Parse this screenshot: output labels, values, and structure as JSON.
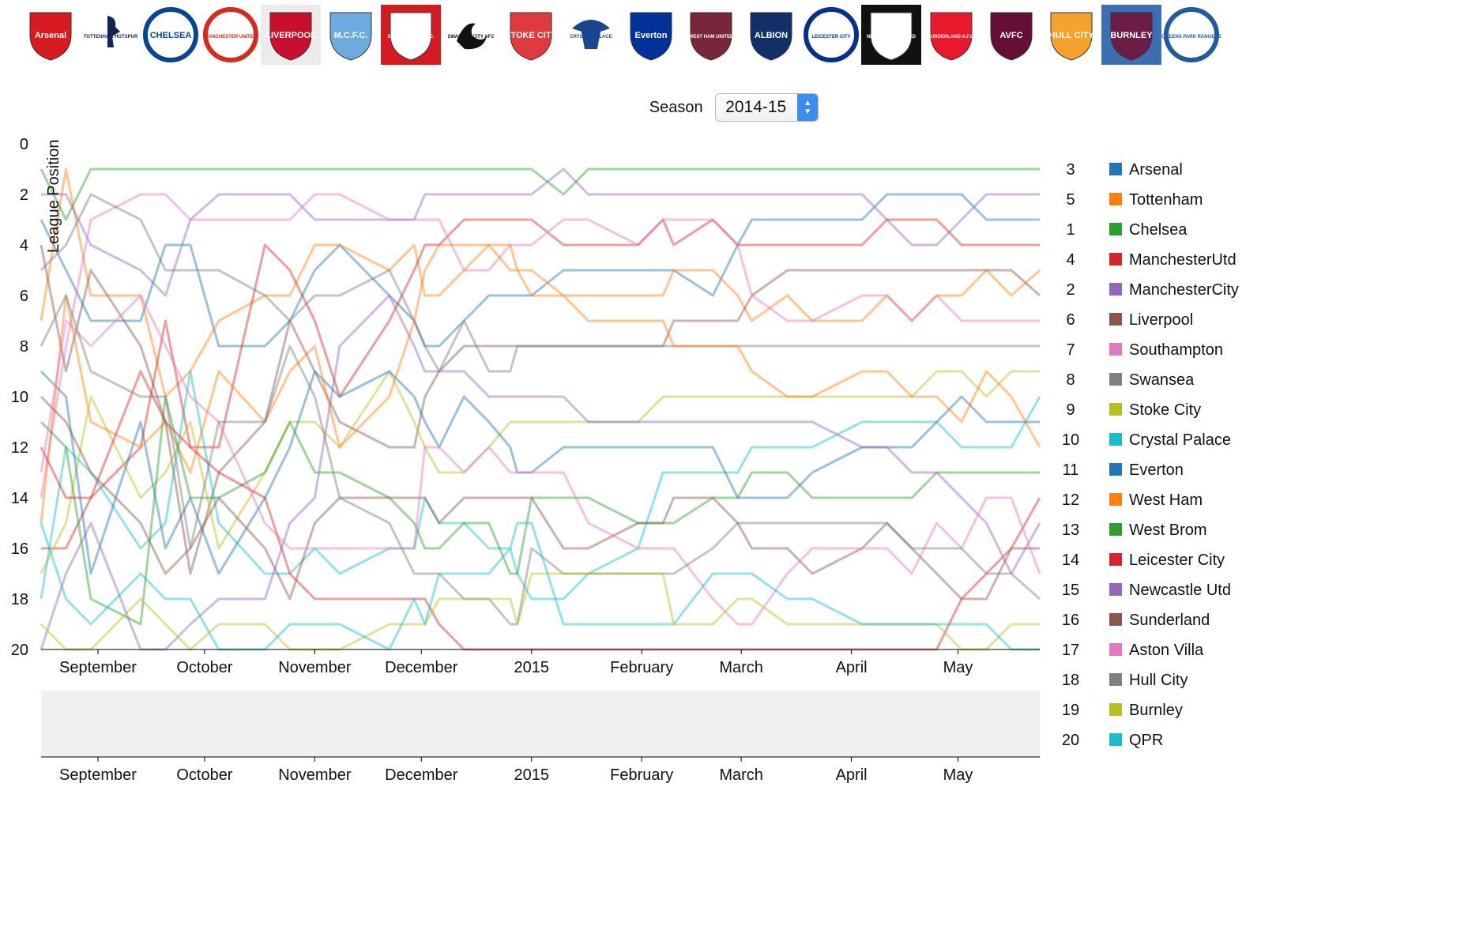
{
  "season": {
    "label": "Season",
    "value": "2014-15"
  },
  "crests": [
    {
      "name": "Arsenal",
      "text": "Arsenal",
      "bg": "#ffffff",
      "fg": "#d71920",
      "shape": "shield"
    },
    {
      "name": "Tottenham",
      "text": "TOTTENHAM HOTSPUR",
      "bg": "#ffffff",
      "fg": "#132257",
      "shape": "cockerel"
    },
    {
      "name": "Chelsea",
      "text": "CHELSEA",
      "bg": "#ffffff",
      "fg": "#034694",
      "shape": "circle"
    },
    {
      "name": "Manchester United",
      "text": "MANCHESTER UNITED",
      "bg": "#ffffff",
      "fg": "#da291c",
      "shape": "circle"
    },
    {
      "name": "Liverpool",
      "text": "LIVERPOOL",
      "bg": "#ececec",
      "fg": "#c8102e",
      "shape": "shield"
    },
    {
      "name": "Manchester City",
      "text": "M.C.F.C.",
      "bg": "#ffffff",
      "fg": "#6cabdd",
      "shape": "shield"
    },
    {
      "name": "Southampton",
      "text": "SOUTHAMPTON F.C.",
      "bg": "#d71920",
      "fg": "#ffffff",
      "shape": "shield"
    },
    {
      "name": "Swansea",
      "text": "SWANSEA CITY AFC",
      "bg": "#ffffff",
      "fg": "#111111",
      "shape": "swan"
    },
    {
      "name": "Stoke City",
      "text": "STOKE CITY",
      "bg": "#ffffff",
      "fg": "#e03a3e",
      "shape": "shield"
    },
    {
      "name": "Crystal Palace",
      "text": "CRYSTAL PALACE",
      "bg": "#ffffff",
      "fg": "#1b458f",
      "shape": "eagle"
    },
    {
      "name": "Everton",
      "text": "Everton",
      "bg": "#ffffff",
      "fg": "#003399",
      "shape": "shield"
    },
    {
      "name": "West Ham",
      "text": "WEST HAM UNITED",
      "bg": "#ffffff",
      "fg": "#7a263a",
      "shape": "shield"
    },
    {
      "name": "West Brom",
      "text": "ALBION",
      "bg": "#ffffff",
      "fg": "#122f67",
      "shape": "shield"
    },
    {
      "name": "Leicester City",
      "text": "LEICESTER CITY",
      "bg": "#ffffff",
      "fg": "#003090",
      "shape": "circle"
    },
    {
      "name": "Newcastle Utd",
      "text": "NEWCASTLE UNITED",
      "bg": "#111111",
      "fg": "#ffffff",
      "shape": "shield"
    },
    {
      "name": "Sunderland",
      "text": "SUNDERLAND A.F.C.",
      "bg": "#ffffff",
      "fg": "#eb172b",
      "shape": "shield"
    },
    {
      "name": "Aston Villa",
      "text": "AVFC",
      "bg": "#ffffff",
      "fg": "#670e36",
      "shape": "shield"
    },
    {
      "name": "Hull City",
      "text": "HULL CITY",
      "bg": "#ffffff",
      "fg": "#f5a12d",
      "shape": "shield"
    },
    {
      "name": "Burnley",
      "text": "BURNLEY",
      "bg": "#3c6eb4",
      "fg": "#6c1d45",
      "shape": "shield"
    },
    {
      "name": "QPR",
      "text": "QUEENS PARK RANGERS",
      "bg": "#ffffff",
      "fg": "#1d5ba4",
      "shape": "circle"
    }
  ],
  "colors": {
    "chart_line_opacity": "0.45",
    "brush_background": "#f0f0f0",
    "axis_color": "#000000"
  },
  "chart_data": {
    "type": "line",
    "title": "",
    "xlabel": "",
    "ylabel": "League Position",
    "ylim": [
      0,
      20
    ],
    "yticks": [
      0,
      2,
      4,
      6,
      8,
      10,
      12,
      14,
      16,
      18,
      20
    ],
    "xlim": [
      "2014-08-16",
      "2015-05-24"
    ],
    "x_ticks": [
      {
        "date": "2014-09-01",
        "label": "September"
      },
      {
        "date": "2014-10-01",
        "label": "October"
      },
      {
        "date": "2014-11-01",
        "label": "November"
      },
      {
        "date": "2014-12-01",
        "label": "December"
      },
      {
        "date": "2015-01-01",
        "label": "2015"
      },
      {
        "date": "2015-02-01",
        "label": "February"
      },
      {
        "date": "2015-03-01",
        "label": "March"
      },
      {
        "date": "2015-04-01",
        "label": "April"
      },
      {
        "date": "2015-05-01",
        "label": "May"
      }
    ],
    "legend_position": "right",
    "dates": [
      "2014-08-16",
      "2014-08-23",
      "2014-08-30",
      "2014-09-13",
      "2014-09-20",
      "2014-09-27",
      "2014-10-05",
      "2014-10-18",
      "2014-10-25",
      "2014-11-01",
      "2014-11-08",
      "2014-11-22",
      "2014-11-29",
      "2014-12-02",
      "2014-12-06",
      "2014-12-13",
      "2014-12-20",
      "2014-12-26",
      "2014-12-28",
      "2015-01-01",
      "2015-01-10",
      "2015-01-17",
      "2015-01-31",
      "2015-02-07",
      "2015-02-10",
      "2015-02-21",
      "2015-02-28",
      "2015-03-04",
      "2015-03-14",
      "2015-03-21",
      "2015-04-04",
      "2015-04-11",
      "2015-04-18",
      "2015-04-25",
      "2015-05-02",
      "2015-05-09",
      "2015-05-16",
      "2015-05-24"
    ],
    "series": [
      {
        "name": "Arsenal",
        "final_position": 3,
        "color": "#1f77b4",
        "values": [
          3,
          5,
          7,
          7,
          4,
          4,
          8,
          8,
          7,
          5,
          4,
          6,
          7,
          8,
          8,
          7,
          6,
          6,
          6,
          6,
          5,
          5,
          5,
          5,
          5,
          6,
          4,
          3,
          3,
          3,
          3,
          2,
          2,
          2,
          2,
          3,
          3,
          3
        ]
      },
      {
        "name": "Tottenham",
        "final_position": 5,
        "color": "#ff7f0e",
        "values": [
          7,
          1,
          6,
          6,
          10,
          9,
          7,
          6,
          6,
          4,
          4,
          5,
          4,
          6,
          6,
          5,
          4,
          4,
          5,
          5,
          6,
          6,
          6,
          6,
          5,
          5,
          6,
          7,
          6,
          7,
          7,
          6,
          7,
          6,
          6,
          5,
          6,
          5
        ]
      },
      {
        "name": "Chelsea",
        "final_position": 1,
        "color": "#2ca02c",
        "values": [
          1,
          3,
          1,
          1,
          1,
          1,
          1,
          1,
          1,
          1,
          1,
          1,
          1,
          1,
          1,
          1,
          1,
          1,
          1,
          1,
          2,
          1,
          1,
          1,
          1,
          1,
          1,
          1,
          1,
          1,
          1,
          1,
          1,
          1,
          1,
          1,
          1,
          1
        ]
      },
      {
        "name": "ManchesterUtd",
        "final_position": 4,
        "color": "#d62728",
        "values": [
          16,
          16,
          14,
          12,
          7,
          12,
          12,
          4,
          5,
          7,
          10,
          7,
          5,
          4,
          4,
          3,
          3,
          3,
          3,
          3,
          4,
          4,
          4,
          3,
          4,
          3,
          4,
          4,
          4,
          4,
          4,
          3,
          3,
          3,
          4,
          4,
          4,
          4
        ]
      },
      {
        "name": "ManchesterCity",
        "final_position": 2,
        "color": "#9467bd",
        "values": [
          2,
          2,
          4,
          5,
          6,
          3,
          2,
          2,
          2,
          3,
          3,
          3,
          3,
          2,
          2,
          2,
          2,
          2,
          2,
          2,
          1,
          2,
          2,
          2,
          2,
          2,
          2,
          2,
          2,
          2,
          2,
          3,
          4,
          4,
          3,
          2,
          2,
          2
        ]
      },
      {
        "name": "Liverpool",
        "final_position": 6,
        "color": "#8c564b",
        "values": [
          4,
          9,
          5,
          8,
          11,
          17,
          13,
          11,
          7,
          9,
          11,
          12,
          12,
          10,
          9,
          8,
          8,
          8,
          8,
          8,
          8,
          8,
          8,
          8,
          7,
          7,
          7,
          6,
          5,
          5,
          5,
          5,
          5,
          5,
          5,
          5,
          5,
          6
        ]
      },
      {
        "name": "Southampton",
        "final_position": 7,
        "color": "#e377c2",
        "values": [
          14,
          8,
          3,
          2,
          2,
          3,
          3,
          3,
          3,
          2,
          2,
          3,
          3,
          3,
          3,
          5,
          5,
          4,
          4,
          4,
          3,
          3,
          4,
          3,
          3,
          3,
          4,
          6,
          7,
          7,
          6,
          6,
          7,
          6,
          7,
          7,
          7,
          7
        ]
      },
      {
        "name": "Swansea",
        "final_position": 8,
        "color": "#7f7f7f",
        "values": [
          5,
          4,
          2,
          3,
          5,
          5,
          5,
          6,
          7,
          6,
          6,
          5,
          7,
          8,
          9,
          7,
          9,
          9,
          8,
          8,
          8,
          8,
          8,
          8,
          8,
          8,
          8,
          8,
          8,
          8,
          8,
          8,
          8,
          8,
          8,
          8,
          8,
          8
        ]
      },
      {
        "name": "Stoke City",
        "final_position": 9,
        "color": "#bcbd22",
        "values": [
          17,
          15,
          10,
          14,
          13,
          11,
          16,
          13,
          11,
          11,
          12,
          9,
          11,
          12,
          13,
          13,
          12,
          11,
          11,
          11,
          11,
          11,
          11,
          10,
          10,
          10,
          10,
          10,
          10,
          10,
          10,
          10,
          10,
          9,
          9,
          10,
          9,
          9
        ]
      },
      {
        "name": "Crystal Palace",
        "final_position": 10,
        "color": "#17becf",
        "values": [
          18,
          12,
          13,
          16,
          15,
          9,
          15,
          17,
          17,
          16,
          17,
          16,
          16,
          14,
          15,
          15,
          16,
          16,
          17,
          18,
          18,
          17,
          16,
          13,
          13,
          13,
          13,
          12,
          12,
          12,
          11,
          11,
          11,
          11,
          12,
          12,
          12,
          10
        ]
      },
      {
        "name": "Everton",
        "final_position": 11,
        "color": "#1f77b4",
        "values": [
          9,
          10,
          17,
          11,
          16,
          14,
          17,
          14,
          12,
          9,
          10,
          9,
          10,
          11,
          12,
          10,
          11,
          12,
          13,
          13,
          12,
          12,
          12,
          12,
          12,
          12,
          14,
          14,
          14,
          13,
          12,
          12,
          12,
          11,
          10,
          11,
          11,
          11
        ]
      },
      {
        "name": "West Ham",
        "final_position": 12,
        "color": "#ff7f0e",
        "values": [
          15,
          6,
          11,
          12,
          11,
          13,
          9,
          11,
          9,
          8,
          12,
          10,
          7,
          5,
          4,
          4,
          4,
          5,
          5,
          6,
          6,
          7,
          7,
          7,
          8,
          8,
          8,
          9,
          10,
          10,
          9,
          9,
          10,
          10,
          11,
          9,
          10,
          12
        ]
      },
      {
        "name": "West Brom",
        "final_position": 13,
        "color": "#2ca02c",
        "values": [
          11,
          12,
          18,
          19,
          10,
          14,
          14,
          13,
          11,
          13,
          13,
          14,
          15,
          16,
          16,
          15,
          15,
          17,
          17,
          14,
          14,
          14,
          15,
          15,
          15,
          14,
          14,
          13,
          13,
          14,
          14,
          14,
          14,
          13,
          13,
          13,
          13,
          13
        ]
      },
      {
        "name": "Leicester City",
        "final_position": 14,
        "color": "#d62728",
        "values": [
          12,
          14,
          14,
          9,
          11,
          12,
          13,
          14,
          17,
          18,
          18,
          18,
          18,
          18,
          19,
          20,
          20,
          20,
          20,
          20,
          20,
          20,
          20,
          20,
          20,
          20,
          20,
          20,
          20,
          20,
          20,
          20,
          20,
          20,
          18,
          17,
          16,
          14
        ]
      },
      {
        "name": "Newcastle Utd",
        "final_position": 15,
        "color": "#9467bd",
        "values": [
          20,
          17,
          15,
          20,
          20,
          19,
          18,
          18,
          15,
          14,
          8,
          6,
          8,
          9,
          9,
          9,
          10,
          10,
          10,
          10,
          10,
          11,
          11,
          11,
          11,
          11,
          11,
          11,
          11,
          11,
          12,
          12,
          13,
          13,
          14,
          15,
          17,
          15
        ]
      },
      {
        "name": "Sunderland",
        "final_position": 16,
        "color": "#8c564b",
        "values": [
          10,
          11,
          13,
          15,
          17,
          16,
          14,
          16,
          18,
          15,
          14,
          14,
          14,
          14,
          15,
          14,
          14,
          14,
          14,
          14,
          16,
          16,
          15,
          15,
          14,
          14,
          15,
          16,
          16,
          17,
          16,
          15,
          16,
          17,
          18,
          18,
          16,
          16
        ]
      },
      {
        "name": "Aston Villa",
        "final_position": 17,
        "color": "#e377c2",
        "values": [
          13,
          7,
          8,
          6,
          8,
          10,
          11,
          15,
          16,
          16,
          16,
          16,
          16,
          12,
          12,
          13,
          12,
          13,
          13,
          13,
          13,
          15,
          16,
          16,
          16,
          18,
          19,
          19,
          17,
          16,
          16,
          16,
          17,
          15,
          16,
          14,
          14,
          17
        ]
      },
      {
        "name": "Hull City",
        "final_position": 18,
        "color": "#7f7f7f",
        "values": [
          8,
          6,
          9,
          10,
          10,
          16,
          11,
          11,
          8,
          10,
          14,
          15,
          17,
          17,
          17,
          18,
          18,
          19,
          19,
          16,
          17,
          17,
          17,
          17,
          17,
          16,
          15,
          15,
          15,
          15,
          15,
          15,
          16,
          16,
          16,
          17,
          17,
          18
        ]
      },
      {
        "name": "Burnley",
        "final_position": 19,
        "color": "#bcbd22",
        "values": [
          19,
          20,
          20,
          18,
          19,
          20,
          19,
          19,
          20,
          20,
          20,
          19,
          19,
          19,
          18,
          18,
          18,
          18,
          19,
          17,
          17,
          17,
          17,
          17,
          19,
          19,
          18,
          18,
          19,
          19,
          19,
          19,
          19,
          19,
          20,
          20,
          19,
          19
        ]
      },
      {
        "name": "QPR",
        "final_position": 20,
        "color": "#17becf",
        "values": [
          15,
          18,
          19,
          17,
          18,
          18,
          20,
          20,
          19,
          19,
          19,
          20,
          18,
          19,
          17,
          17,
          17,
          16,
          15,
          15,
          19,
          19,
          19,
          19,
          19,
          17,
          17,
          17,
          18,
          18,
          19,
          19,
          19,
          19,
          19,
          19,
          20,
          20
        ]
      }
    ]
  }
}
